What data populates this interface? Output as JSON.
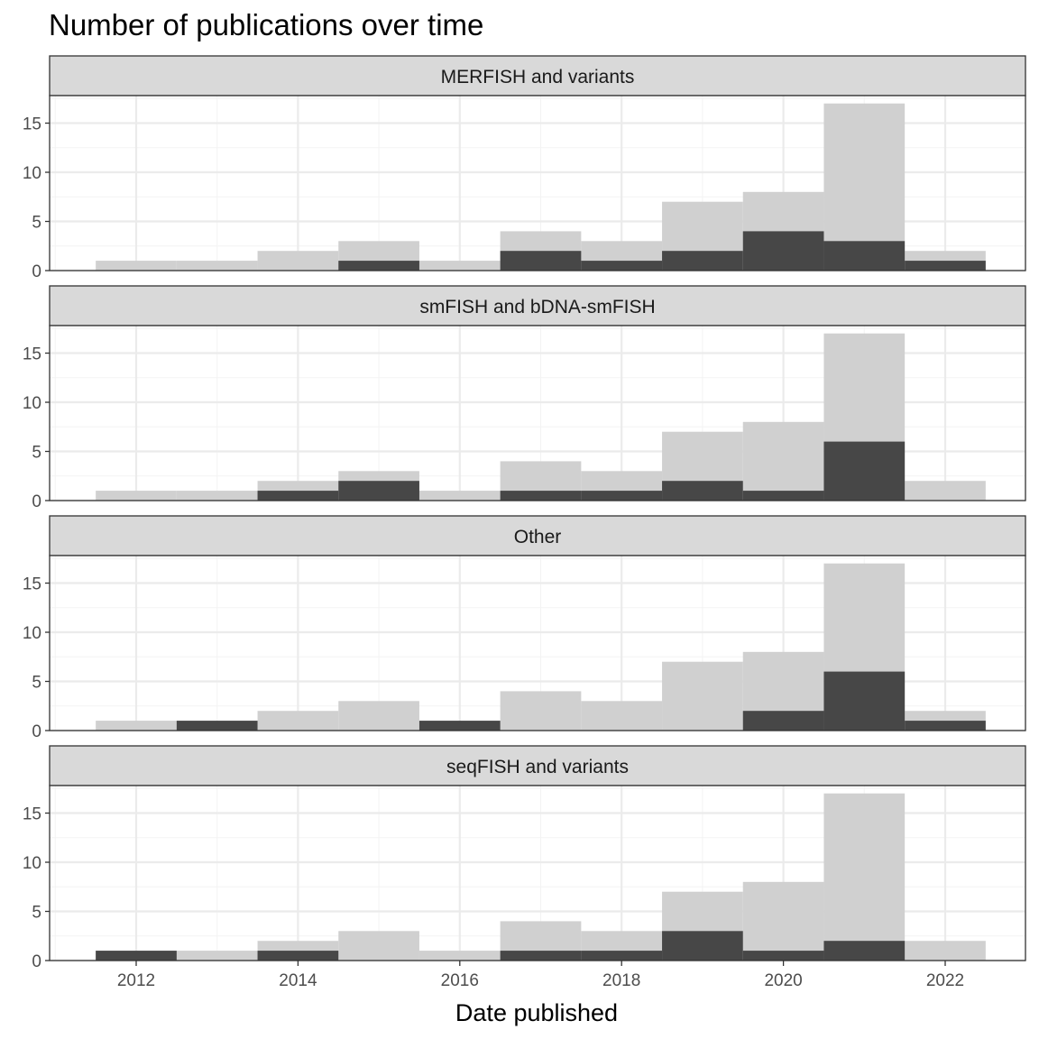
{
  "chart_data": {
    "type": "bar",
    "title": "Number of publications over time",
    "xlabel": "Date published",
    "ylabel": "",
    "x_ticks": [
      "2012",
      "2014",
      "2016",
      "2018",
      "2020",
      "2022"
    ],
    "y_ticks": [
      "0",
      "5",
      "10",
      "15"
    ],
    "ylim": [
      0,
      17.8
    ],
    "bin_years": [
      2012,
      2013,
      2014,
      2015,
      2016,
      2017,
      2018,
      2019,
      2020,
      2021,
      2022
    ],
    "total_counts": [
      1,
      1,
      2,
      3,
      1,
      4,
      3,
      7,
      8,
      17,
      2
    ],
    "facets": [
      {
        "label": "MERFISH and variants",
        "counts": [
          0,
          0,
          0,
          1,
          0,
          2,
          1,
          2,
          4,
          3,
          1
        ]
      },
      {
        "label": "smFISH and bDNA-smFISH",
        "counts": [
          0,
          0,
          1,
          2,
          0,
          1,
          1,
          2,
          1,
          6,
          0
        ]
      },
      {
        "label": "Other",
        "counts": [
          0,
          1,
          0,
          0,
          1,
          0,
          0,
          0,
          2,
          6,
          1
        ]
      },
      {
        "label": "seqFISH and variants",
        "counts": [
          1,
          0,
          1,
          0,
          0,
          1,
          1,
          3,
          1,
          2,
          0
        ]
      }
    ],
    "colors": {
      "total": "#d0d0d0",
      "facet": "#474747",
      "grid": "#ebebeb",
      "strip": "#d9d9d9",
      "border": "#333333"
    },
    "grid": true
  }
}
